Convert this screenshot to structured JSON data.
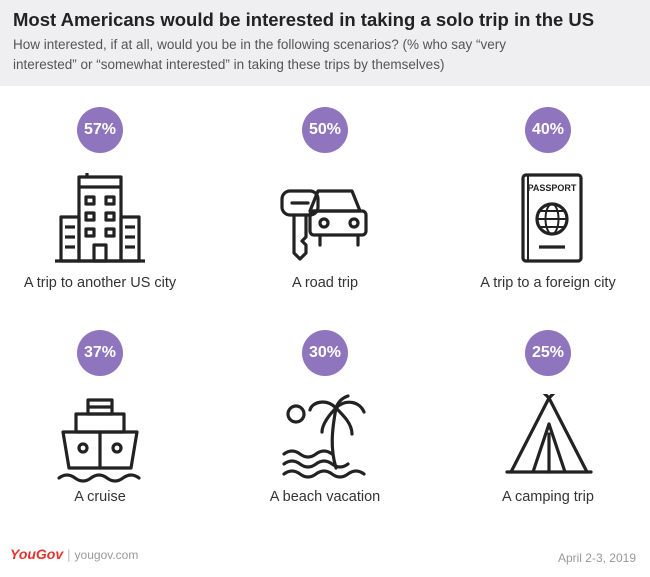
{
  "chart_data": {
    "type": "icon-stat-grid",
    "title": "Most Americans would be interested in taking a solo trip in the US",
    "subtitle": "How interested, if at all, would you be in the following scenarios? (% who say “very interested” or “somewhat interested” in taking these trips by themselves)",
    "unit": "%",
    "items": [
      {
        "label": "A trip to another US city",
        "value": 57,
        "value_label": "57%",
        "icon": "city-buildings-icon"
      },
      {
        "label": "A road trip",
        "value": 50,
        "value_label": "50%",
        "icon": "car-key-icon"
      },
      {
        "label": "A trip to a foreign city",
        "value": 40,
        "value_label": "40%",
        "icon": "passport-icon"
      },
      {
        "label": "A cruise",
        "value": 37,
        "value_label": "37%",
        "icon": "cruise-ship-icon"
      },
      {
        "label": "A beach vacation",
        "value": 30,
        "value_label": "30%",
        "icon": "palm-tree-beach-icon"
      },
      {
        "label": "A camping trip",
        "value": 25,
        "value_label": "25%",
        "icon": "tent-icon"
      }
    ]
  },
  "footer": {
    "brand": "YouGov",
    "url": "yougov.com",
    "date": "April 2-3, 2019"
  },
  "colors": {
    "badge": "#8e75bd",
    "header_bg": "#efeff2",
    "brand": "#e3332b"
  },
  "icons": {
    "passport_text": "PASSPORT"
  }
}
